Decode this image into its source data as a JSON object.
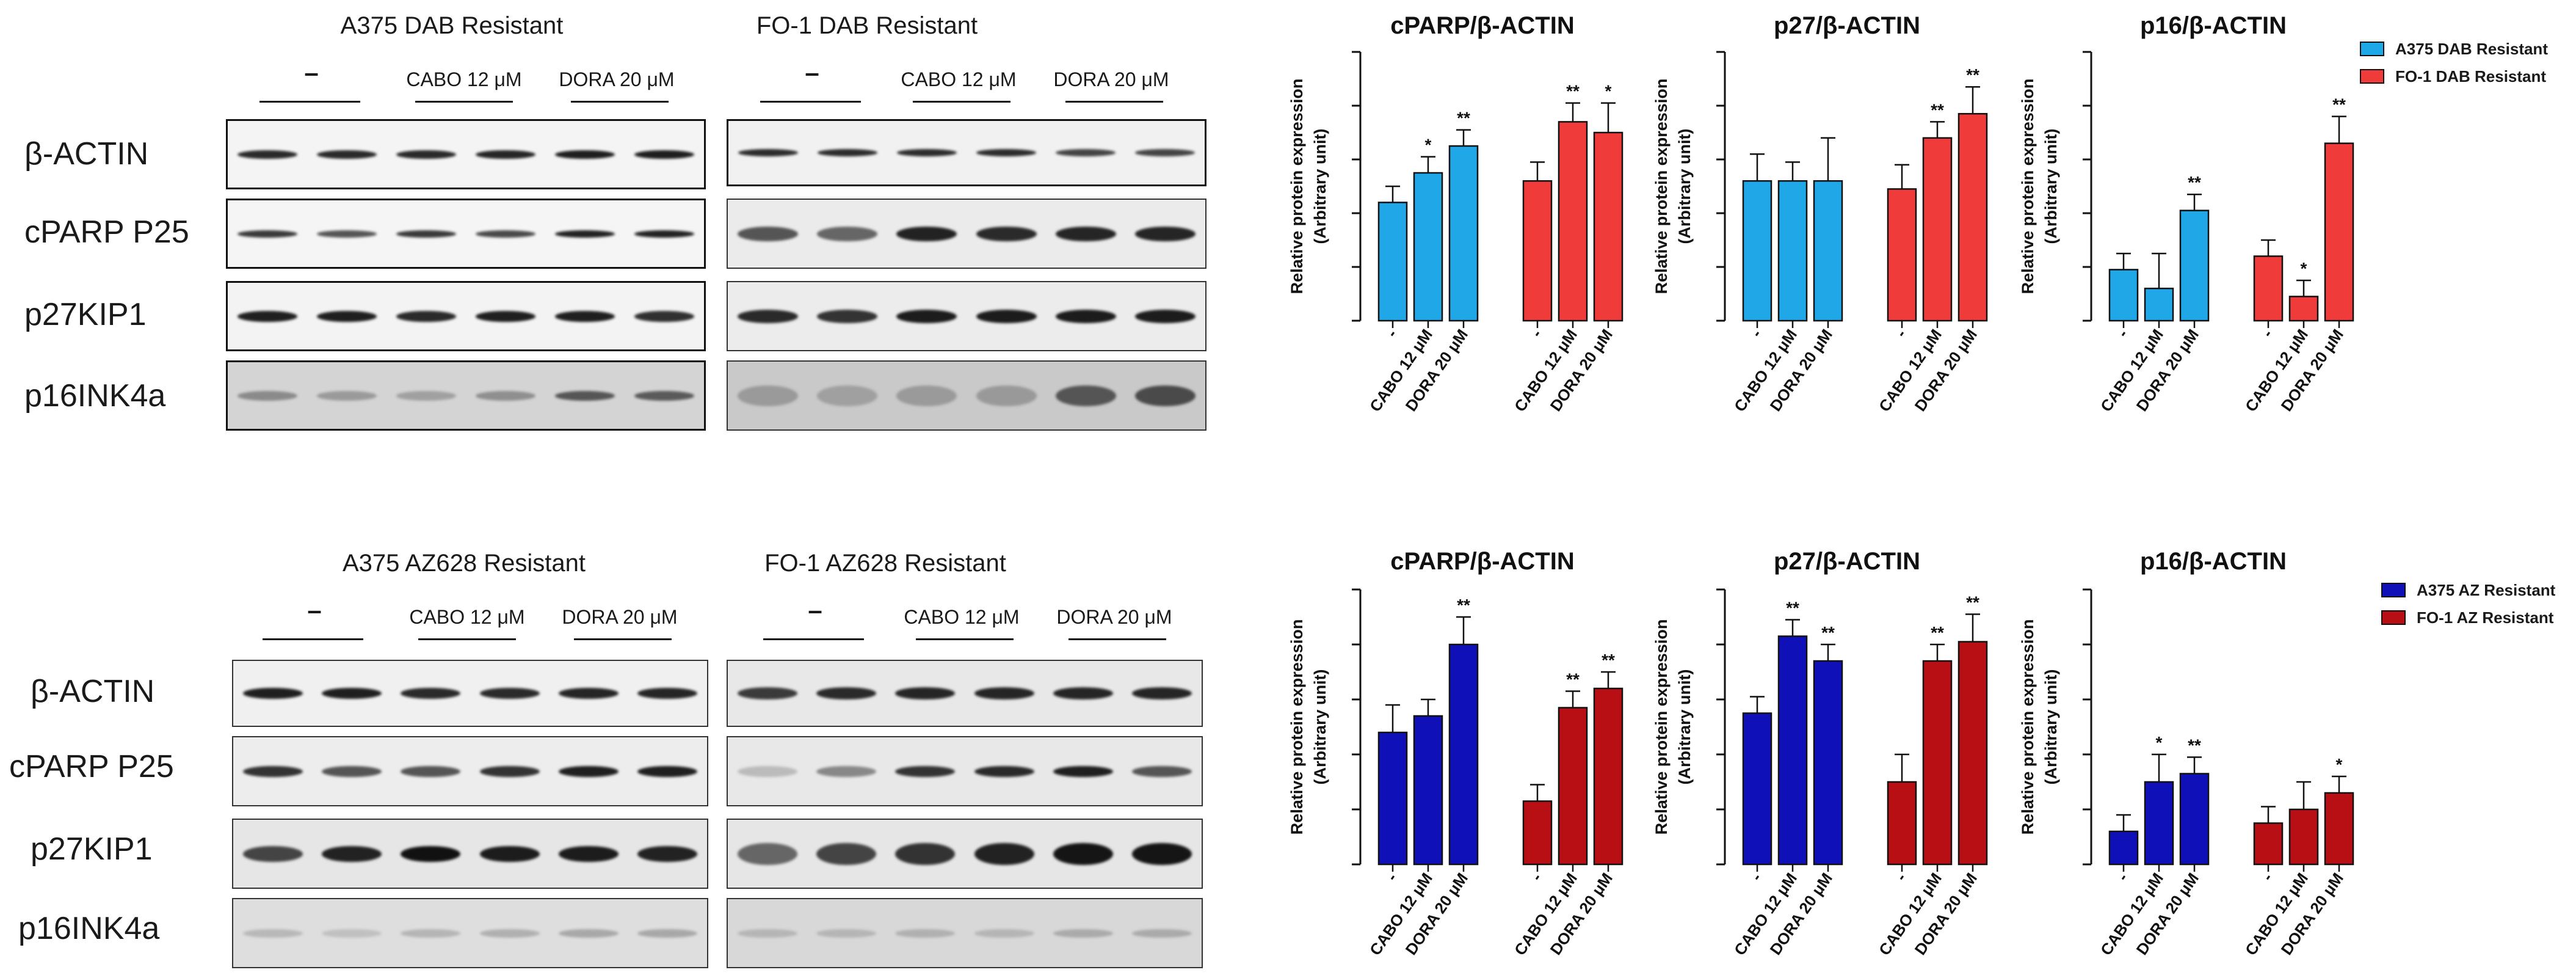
{
  "top": {
    "blots": [
      {
        "title": "A375 DAB Resistant",
        "conditions": [
          "–",
          "CABO 12 μM",
          "DORA 20 μM"
        ]
      },
      {
        "title": "FO-1 DAB Resistant",
        "conditions": [
          "–",
          "CABO 12 μM",
          "DORA 20 μM"
        ]
      }
    ],
    "rows": [
      "β-ACTIN",
      "cPARP P25",
      "p27KIP1",
      "p16INK4a"
    ]
  },
  "bottom": {
    "blots": [
      {
        "title": "A375 AZ628 Resistant",
        "conditions": [
          "–",
          "CABO 12 μM",
          "DORA 20 μM"
        ]
      },
      {
        "title": "FO-1 AZ628 Resistant",
        "conditions": [
          "–",
          "CABO 12 μM",
          "DORA 20 μM"
        ]
      }
    ],
    "rows": [
      "β-ACTIN",
      "cPARP P25",
      "p27KIP1",
      "p16INK4a"
    ]
  },
  "legends": {
    "top": [
      {
        "label": "A375 DAB Resistant",
        "color": "#1fa7e8"
      },
      {
        "label": "FO-1 DAB Resistant",
        "color": "#f03b3b"
      }
    ],
    "bottom": [
      {
        "label": "A375 AZ Resistant",
        "color": "#1010b8"
      },
      {
        "label": "FO-1 AZ Resistant",
        "color": "#b80f14"
      }
    ]
  },
  "chart_data": [
    {
      "type": "bar",
      "title": "cPARP/β-ACTIN",
      "ylabel": "Relative protein expression\n(Arbitrary unit)",
      "categories": [
        "-",
        "CABO 12 μM",
        "DORA 20 μM"
      ],
      "ylim": [
        0,
        5
      ],
      "series": [
        {
          "name": "A375 DAB Resistant",
          "color": "#1fa7e8",
          "values": [
            2.2,
            2.75,
            3.25
          ],
          "err": [
            0.3,
            0.3,
            0.3
          ],
          "sig": [
            "",
            "*",
            "**"
          ]
        },
        {
          "name": "FO-1 DAB Resistant",
          "color": "#f03b3b",
          "values": [
            2.6,
            3.7,
            3.5
          ],
          "err": [
            0.35,
            0.35,
            0.55
          ],
          "sig": [
            "",
            "**",
            "*"
          ]
        }
      ]
    },
    {
      "type": "bar",
      "title": "p27/β-ACTIN",
      "ylabel": "Relative protein expression\n(Arbitrary unit)",
      "categories": [
        "-",
        "CABO 12 μM",
        "DORA 20 μM"
      ],
      "ylim": [
        0,
        5
      ],
      "series": [
        {
          "name": "A375 DAB Resistant",
          "color": "#1fa7e8",
          "values": [
            2.6,
            2.6,
            2.6
          ],
          "err": [
            0.5,
            0.35,
            0.8
          ],
          "sig": [
            "",
            "",
            ""
          ]
        },
        {
          "name": "FO-1 DAB Resistant",
          "color": "#f03b3b",
          "values": [
            2.45,
            3.4,
            3.85
          ],
          "err": [
            0.45,
            0.3,
            0.5
          ],
          "sig": [
            "",
            "**",
            "**"
          ]
        }
      ]
    },
    {
      "type": "bar",
      "title": "p16/β-ACTIN",
      "ylabel": "Relative protein expression\n(Arbitrary unit)",
      "categories": [
        "-",
        "CABO 12 μM",
        "DORA 20 μM"
      ],
      "ylim": [
        0,
        5
      ],
      "series": [
        {
          "name": "A375 DAB Resistant",
          "color": "#1fa7e8",
          "values": [
            0.95,
            0.6,
            2.05
          ],
          "err": [
            0.3,
            0.65,
            0.3
          ],
          "sig": [
            "",
            "",
            "**"
          ]
        },
        {
          "name": "FO-1 DAB Resistant",
          "color": "#f03b3b",
          "values": [
            1.2,
            0.45,
            3.3
          ],
          "err": [
            0.3,
            0.3,
            0.5
          ],
          "sig": [
            "",
            "*",
            "**"
          ]
        }
      ]
    },
    {
      "type": "bar",
      "title": "cPARP/β-ACTIN",
      "ylabel": "Relative protein expression\n(Arbitrary unit)",
      "categories": [
        "-",
        "CABO 12 μM",
        "DORA 20 μM"
      ],
      "ylim": [
        0,
        5
      ],
      "series": [
        {
          "name": "A375 AZ Resistant",
          "color": "#1010b8",
          "values": [
            2.4,
            2.7,
            4.0
          ],
          "err": [
            0.5,
            0.3,
            0.5
          ],
          "sig": [
            "",
            "",
            "**"
          ]
        },
        {
          "name": "FO-1 AZ Resistant",
          "color": "#b80f14",
          "values": [
            1.15,
            2.85,
            3.2
          ],
          "err": [
            0.3,
            0.3,
            0.3
          ],
          "sig": [
            "",
            "**",
            "**"
          ]
        }
      ]
    },
    {
      "type": "bar",
      "title": "p27/β-ACTIN",
      "ylabel": "Relative protein expression\n(Arbitrary unit)",
      "categories": [
        "-",
        "CABO 12 μM",
        "DORA 20 μM"
      ],
      "ylim": [
        0,
        5
      ],
      "series": [
        {
          "name": "A375 AZ Resistant",
          "color": "#1010b8",
          "values": [
            2.75,
            4.15,
            3.7
          ],
          "err": [
            0.3,
            0.3,
            0.3
          ],
          "sig": [
            "",
            "**",
            "**"
          ]
        },
        {
          "name": "FO-1 AZ Resistant",
          "color": "#b80f14",
          "values": [
            1.5,
            3.7,
            4.05
          ],
          "err": [
            0.5,
            0.3,
            0.5
          ],
          "sig": [
            "",
            "**",
            "**"
          ]
        }
      ]
    },
    {
      "type": "bar",
      "title": "p16/β-ACTIN",
      "ylabel": "Relative protein expression\n(Arbitrary unit)",
      "categories": [
        "-",
        "CABO 12 μM",
        "DORA 20 μM"
      ],
      "ylim": [
        0,
        5
      ],
      "series": [
        {
          "name": "A375 AZ Resistant",
          "color": "#1010b8",
          "values": [
            0.6,
            1.5,
            1.65
          ],
          "err": [
            0.3,
            0.5,
            0.3
          ],
          "sig": [
            "",
            "*",
            "**"
          ]
        },
        {
          "name": "FO-1 AZ Resistant",
          "color": "#b80f14",
          "values": [
            0.75,
            1.0,
            1.3
          ],
          "err": [
            0.3,
            0.5,
            0.3
          ],
          "sig": [
            "",
            "",
            "*"
          ]
        }
      ]
    }
  ]
}
